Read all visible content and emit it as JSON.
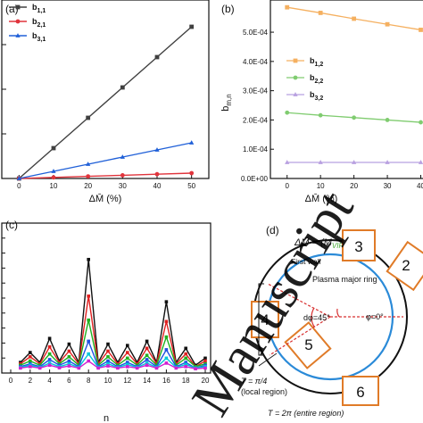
{
  "chart_data": [
    {
      "panel": "(a)",
      "type": "line",
      "xlabel": "ΔM̄ (%)",
      "x": [
        0,
        10,
        20,
        30,
        40,
        50
      ],
      "xticks": [
        "0",
        "10",
        "20",
        "30",
        "40",
        "50"
      ],
      "xlim": [
        -5,
        55
      ],
      "ylim": [
        0,
        1
      ],
      "legend": "top-left",
      "series": [
        {
          "name": "b1,1",
          "color": "#404040",
          "marker": "square",
          "values": [
            0.0,
            0.17,
            0.34,
            0.51,
            0.68,
            0.85
          ]
        },
        {
          "name": "b2,1",
          "color": "#e0343c",
          "marker": "circle",
          "values": [
            0.0,
            0.006,
            0.012,
            0.018,
            0.024,
            0.03
          ]
        },
        {
          "name": "b3,1",
          "color": "#2060d8",
          "marker": "triangle",
          "values": [
            0.0,
            0.04,
            0.08,
            0.12,
            0.16,
            0.2
          ]
        }
      ]
    },
    {
      "panel": "(b)",
      "type": "line",
      "xlabel": "ΔM̄ (%)",
      "ylabel": "b_m,n",
      "x": [
        0,
        10,
        20,
        30,
        40
      ],
      "xticks": [
        "0",
        "10",
        "20",
        "30",
        "40"
      ],
      "yticks": [
        "0.0E+00",
        "1.0E-04",
        "2.0E-04",
        "3.0E-04",
        "4.0E-04",
        "5.0E-04"
      ],
      "xlim": [
        -5,
        42
      ],
      "ylim": [
        0,
        0.00061
      ],
      "legend": "center-right",
      "series": [
        {
          "name": "b1,2",
          "color": "#f5b060",
          "marker": "square",
          "values": [
            0.000585,
            0.000566,
            0.000546,
            0.000527,
            0.000508
          ]
        },
        {
          "name": "b2,2",
          "color": "#80cc70",
          "marker": "circle",
          "values": [
            0.000225,
            0.000216,
            0.000208,
            0.0002,
            0.000192
          ]
        },
        {
          "name": "b3,2",
          "color": "#b8a0e0",
          "marker": "triangle",
          "values": [
            5.5e-05,
            5.5e-05,
            5.5e-05,
            5.5e-05,
            5.5e-05
          ]
        }
      ]
    },
    {
      "panel": "(c)",
      "type": "line",
      "xlabel": "n",
      "x": [
        1,
        2,
        3,
        4,
        5,
        6,
        7,
        8,
        9,
        10,
        11,
        12,
        13,
        14,
        15,
        16,
        17,
        18,
        19,
        20
      ],
      "xticks": [
        "0",
        "2",
        "4",
        "6",
        "8",
        "10",
        "12",
        "14",
        "16",
        "18",
        "20"
      ],
      "xlim": [
        0,
        20
      ],
      "ylim": [
        0,
        1
      ],
      "series": [
        {
          "color": "#111111",
          "values": [
            0.05,
            0.12,
            0.05,
            0.22,
            0.06,
            0.18,
            0.05,
            0.78,
            0.05,
            0.18,
            0.05,
            0.17,
            0.05,
            0.2,
            0.05,
            0.48,
            0.05,
            0.15,
            0.03,
            0.08
          ]
        },
        {
          "color": "#e02020",
          "values": [
            0.04,
            0.09,
            0.04,
            0.16,
            0.05,
            0.13,
            0.04,
            0.52,
            0.04,
            0.13,
            0.04,
            0.12,
            0.04,
            0.15,
            0.04,
            0.34,
            0.04,
            0.11,
            0.02,
            0.06
          ]
        },
        {
          "color": "#20b020",
          "values": [
            0.03,
            0.06,
            0.03,
            0.11,
            0.04,
            0.09,
            0.03,
            0.35,
            0.03,
            0.09,
            0.03,
            0.08,
            0.03,
            0.1,
            0.03,
            0.23,
            0.03,
            0.08,
            0.02,
            0.04
          ]
        },
        {
          "color": "#2050e0",
          "values": [
            0.02,
            0.04,
            0.02,
            0.07,
            0.03,
            0.06,
            0.02,
            0.2,
            0.02,
            0.06,
            0.02,
            0.05,
            0.02,
            0.07,
            0.02,
            0.14,
            0.02,
            0.05,
            0.01,
            0.03
          ]
        },
        {
          "color": "#00c8d8",
          "values": [
            0.015,
            0.03,
            0.015,
            0.045,
            0.02,
            0.04,
            0.015,
            0.11,
            0.015,
            0.04,
            0.015,
            0.035,
            0.015,
            0.045,
            0.015,
            0.08,
            0.015,
            0.035,
            0.01,
            0.02
          ]
        },
        {
          "color": "#d020d0",
          "values": [
            0.01,
            0.02,
            0.01,
            0.03,
            0.012,
            0.025,
            0.01,
            0.06,
            0.01,
            0.025,
            0.01,
            0.02,
            0.01,
            0.03,
            0.01,
            0.045,
            0.01,
            0.02,
            0.005,
            0.01
          ]
        }
      ]
    }
  ],
  "panel_a": {
    "label": "(a)"
  },
  "panel_b": {
    "label": "(b)",
    "ylabel_main": "b",
    "ylabel_sub": "m,n"
  },
  "panel_c": {
    "label": "(c)"
  },
  "panel_d": {
    "label": "(d)",
    "formula": "ΔM̄ = (M",
    "formula_sub": "VIR",
    "formula_tail": " −",
    "first_wall": "First wall",
    "plasma_ring": "Plasma major ring",
    "coil_labels": [
      "3",
      "2",
      "4",
      "5",
      "6"
    ],
    "dphi": "dφ=45°",
    "phi0": "φ=0°",
    "local_region": "T = π/4",
    "local_region_note": "(local region)",
    "entire_region": "T = 2π (entire region)"
  },
  "watermark": "Manuscript"
}
